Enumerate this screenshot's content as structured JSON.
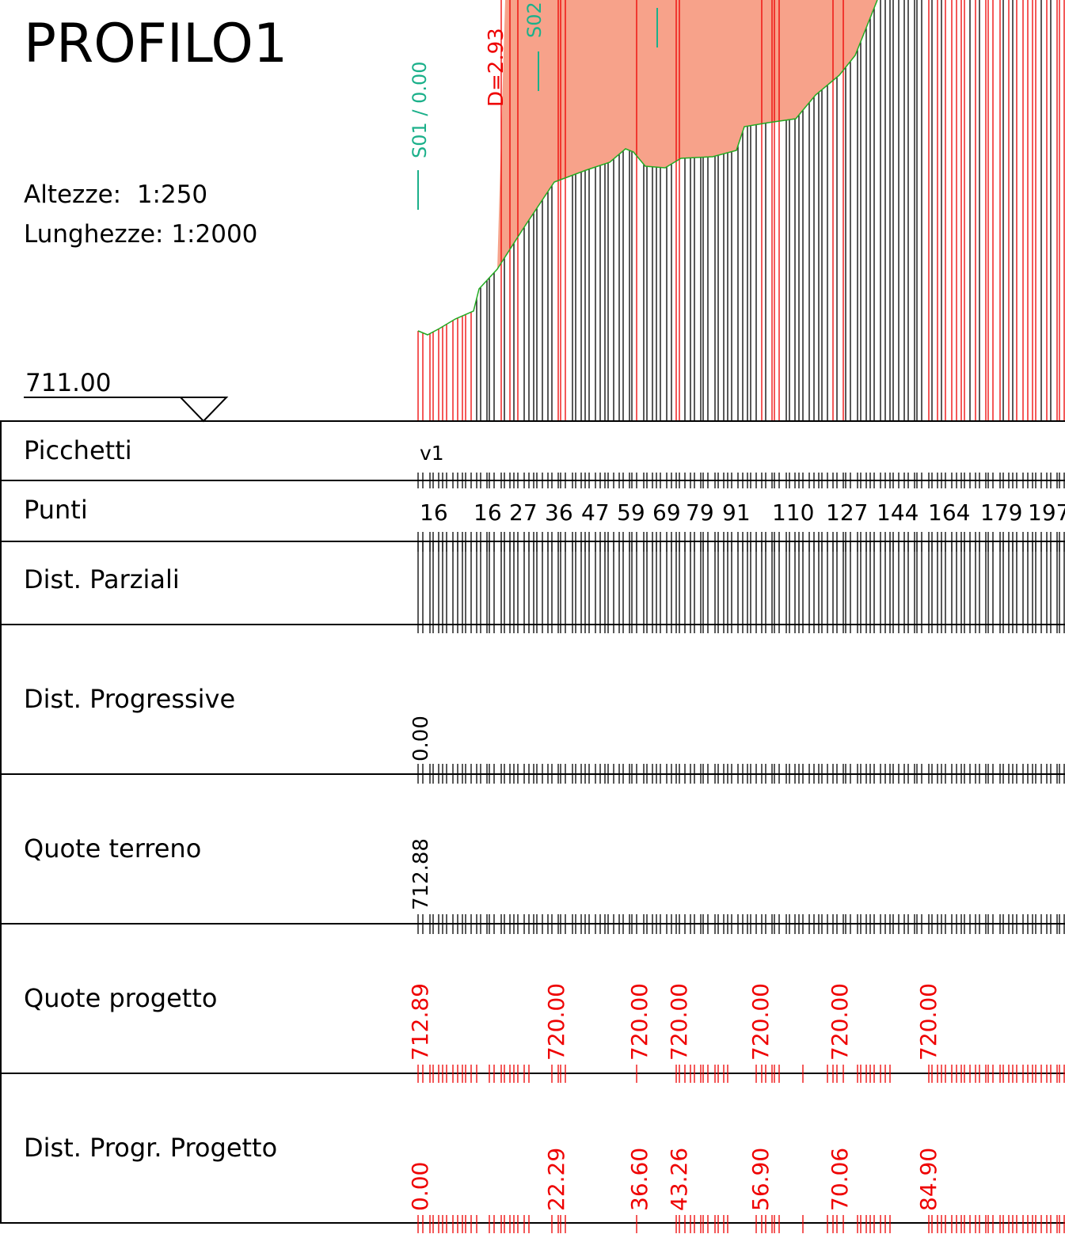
{
  "title": "PROFILO1",
  "scales": [
    "Altezze:  1:250",
    "Lunghezze: 1:2000"
  ],
  "datum": "711.00",
  "sections": [
    "S01 / 0.00",
    "S02"
  ],
  "offset_label": "D=2.93",
  "rows": [
    "Picchetti",
    "Punti",
    "Dist. Parziali",
    "Dist. Progressive",
    "Quote terreno",
    "Quote progetto",
    "Dist. Progr. Progetto"
  ],
  "picchetti": [
    "v1"
  ],
  "punti": [
    "16",
    "16",
    "27",
    "36",
    "47",
    "59",
    "69",
    "79",
    "91",
    "110",
    "127",
    "144",
    "164",
    "179",
    "197"
  ],
  "dist_progressive": [
    "0.00"
  ],
  "quote_terreno": [
    "712.88"
  ],
  "quote_progetto": [
    "712.89",
    "720.00",
    "720.00",
    "720.00",
    "720.00",
    "720.00",
    "720.00"
  ],
  "dist_progr_progetto": [
    "0.00",
    "22.29",
    "36.60",
    "43.26",
    "56.90",
    "70.06",
    "84.90"
  ]
}
